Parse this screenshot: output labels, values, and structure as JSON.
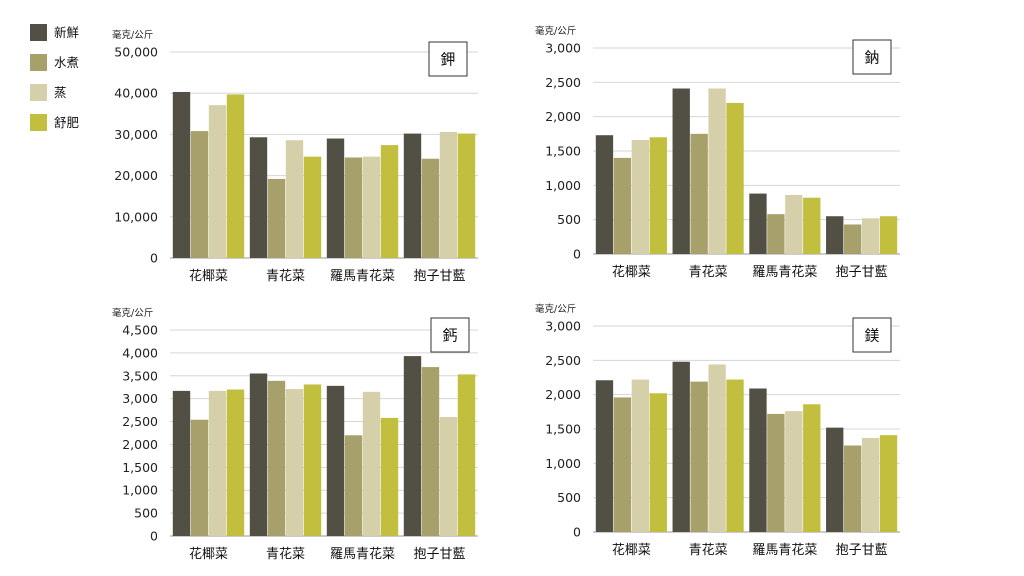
{
  "legend": [
    {
      "name": "新鮮",
      "color": "#525044"
    },
    {
      "name": "水煮",
      "color": "#a8a06a"
    },
    {
      "name": "蒸",
      "color": "#d6d0aa"
    },
    {
      "name": "舒肥",
      "color": "#c2be3e"
    }
  ],
  "chart_data": [
    {
      "type": "bar",
      "title": "鉀",
      "ylabel": "毫克/公斤",
      "categories": [
        "花椰菜",
        "青花菜",
        "羅馬青花菜",
        "抱子甘藍"
      ],
      "yticks": [
        0,
        10000,
        20000,
        30000,
        40000,
        50000
      ],
      "ytick_labels": [
        "0",
        "10,000",
        "20,000",
        "30,000",
        "40,000",
        "50,000"
      ],
      "ylim": [
        0,
        50000
      ],
      "series": [
        {
          "name": "新鮮",
          "values": [
            40300,
            29300,
            29000,
            30200
          ]
        },
        {
          "name": "水煮",
          "values": [
            30800,
            19200,
            24400,
            24100
          ]
        },
        {
          "name": "蒸",
          "values": [
            37100,
            28600,
            24600,
            30600
          ]
        },
        {
          "name": "舒肥",
          "values": [
            39700,
            24600,
            27400,
            30200
          ]
        }
      ]
    },
    {
      "type": "bar",
      "title": "鈉",
      "ylabel": "毫克/公斤",
      "categories": [
        "花椰菜",
        "青花菜",
        "羅馬青花菜",
        "抱子甘藍"
      ],
      "yticks": [
        0,
        500,
        1000,
        1500,
        2000,
        2500,
        3000
      ],
      "ytick_labels": [
        "0",
        "500",
        "1,000",
        "1,500",
        "2,000",
        "2,500",
        "3,000"
      ],
      "ylim": [
        0,
        3000
      ],
      "series": [
        {
          "name": "新鮮",
          "values": [
            1730,
            2410,
            880,
            550
          ]
        },
        {
          "name": "水煮",
          "values": [
            1400,
            1750,
            580,
            430
          ]
        },
        {
          "name": "蒸",
          "values": [
            1660,
            2410,
            860,
            520
          ]
        },
        {
          "name": "舒肥",
          "values": [
            1700,
            2200,
            820,
            550
          ]
        }
      ]
    },
    {
      "type": "bar",
      "title": "鈣",
      "ylabel": "毫克/公斤",
      "categories": [
        "花椰菜",
        "青花菜",
        "羅馬青花菜",
        "抱子甘藍"
      ],
      "yticks": [
        0,
        500,
        1000,
        1500,
        2000,
        2500,
        3000,
        3500,
        4000,
        4500
      ],
      "ytick_labels": [
        "0",
        "500",
        "1,000",
        "1,500",
        "2,000",
        "2,500",
        "3,000",
        "3,500",
        "4,000",
        "4,500"
      ],
      "ylim": [
        0,
        4500
      ],
      "series": [
        {
          "name": "新鮮",
          "values": [
            3170,
            3550,
            3280,
            3930
          ]
        },
        {
          "name": "水煮",
          "values": [
            2540,
            3390,
            2200,
            3690
          ]
        },
        {
          "name": "蒸",
          "values": [
            3170,
            3210,
            3150,
            2600
          ]
        },
        {
          "name": "舒肥",
          "values": [
            3200,
            3310,
            2580,
            3530
          ]
        }
      ]
    },
    {
      "type": "bar",
      "title": "鎂",
      "ylabel": "毫克/公斤",
      "categories": [
        "花椰菜",
        "青花菜",
        "羅馬青花菜",
        "抱子甘藍"
      ],
      "yticks": [
        0,
        500,
        1000,
        1500,
        2000,
        2500,
        3000
      ],
      "ytick_labels": [
        "0",
        "500",
        "1,000",
        "1,500",
        "2,000",
        "2,500",
        "3,000"
      ],
      "ylim": [
        0,
        3000
      ],
      "series": [
        {
          "name": "新鮮",
          "values": [
            2210,
            2480,
            2090,
            1520
          ]
        },
        {
          "name": "水煮",
          "values": [
            1960,
            2190,
            1720,
            1260
          ]
        },
        {
          "name": "蒸",
          "values": [
            2220,
            2440,
            1760,
            1370
          ]
        },
        {
          "name": "舒肥",
          "values": [
            2020,
            2220,
            1860,
            1410
          ]
        }
      ]
    }
  ]
}
